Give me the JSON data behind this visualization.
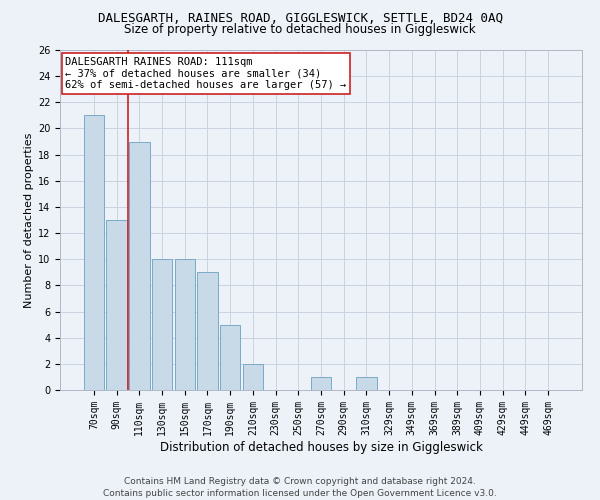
{
  "title": "DALESGARTH, RAINES ROAD, GIGGLESWICK, SETTLE, BD24 0AQ",
  "subtitle": "Size of property relative to detached houses in Giggleswick",
  "xlabel": "Distribution of detached houses by size in Giggleswick",
  "ylabel": "Number of detached properties",
  "categories": [
    "70sqm",
    "90sqm",
    "110sqm",
    "130sqm",
    "150sqm",
    "170sqm",
    "190sqm",
    "210sqm",
    "230sqm",
    "250sqm",
    "270sqm",
    "290sqm",
    "310sqm",
    "329sqm",
    "349sqm",
    "369sqm",
    "389sqm",
    "409sqm",
    "429sqm",
    "449sqm",
    "469sqm"
  ],
  "values": [
    21,
    13,
    19,
    10,
    10,
    9,
    5,
    2,
    0,
    0,
    1,
    0,
    1,
    0,
    0,
    0,
    0,
    0,
    0,
    0,
    0
  ],
  "bar_color": "#c8d9e8",
  "bar_edge_color": "#7aaac8",
  "vline_x": 1.5,
  "vline_color": "#cc2222",
  "annotation_text": "DALESGARTH RAINES ROAD: 111sqm\n← 37% of detached houses are smaller (34)\n62% of semi-detached houses are larger (57) →",
  "annotation_box_color": "#ffffff",
  "annotation_box_edge": "#cc2222",
  "ylim": [
    0,
    26
  ],
  "yticks": [
    0,
    2,
    4,
    6,
    8,
    10,
    12,
    14,
    16,
    18,
    20,
    22,
    24,
    26
  ],
  "grid_color": "#c8d4e0",
  "footnote": "Contains HM Land Registry data © Crown copyright and database right 2024.\nContains public sector information licensed under the Open Government Licence v3.0.",
  "bg_color": "#edf2f9",
  "plot_bg_color": "#edf2f9",
  "title_fontsize": 9,
  "subtitle_fontsize": 8.5,
  "xlabel_fontsize": 8.5,
  "ylabel_fontsize": 8,
  "tick_fontsize": 7,
  "annotation_fontsize": 7.5,
  "footnote_fontsize": 6.5
}
